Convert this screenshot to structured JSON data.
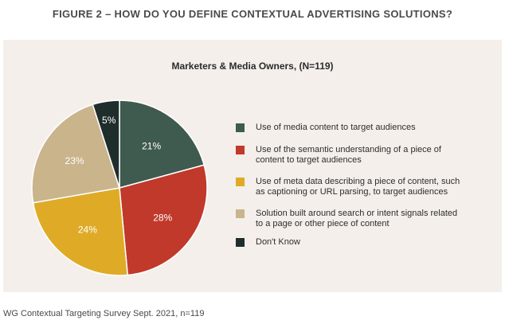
{
  "figure_title": "FIGURE 2 – HOW DO YOU DEFINE CONTEXTUAL ADVERTISING SOLUTIONS?",
  "source": "WG Contextual Targeting Survey Sept. 2021, n=119",
  "chart_data": {
    "type": "pie",
    "title": "Marketers & Media Owners, (N=119)",
    "slices": [
      {
        "label": "Use of media content to target audiences",
        "value": 21,
        "display": "21%",
        "color": "#3f5a4f",
        "text_color": "#ffffff"
      },
      {
        "label": "Use of the semantic understanding of a piece of content to target audiences",
        "value": 28,
        "display": "28%",
        "color": "#c0392b",
        "text_color": "#ffffff"
      },
      {
        "label": "Use of meta data describing a piece of content, such as captioning or URL parsing, to target audiences",
        "value": 24,
        "display": "24%",
        "color": "#dfab27",
        "text_color": "#ffffff"
      },
      {
        "label": "Solution built around search or intent signals related to a page or other piece of content",
        "value": 23,
        "display": "23%",
        "color": "#c9b48c",
        "text_color": "#ffffff"
      },
      {
        "label": "Don't Know",
        "value": 5,
        "display": "5%",
        "color": "#1f2d2b",
        "text_color": "#ffffff"
      }
    ],
    "legend_lines": [
      [
        "Use of media content to target audiences"
      ],
      [
        "Use of the semantic understanding of a piece of",
        "content to target audiences"
      ],
      [
        "Use of meta data describing a piece of content, such",
        "as captioning or URL parsing, to target audiences"
      ],
      [
        "Solution built around search or intent signals related",
        "to a page or other piece of content"
      ],
      [
        "Don't Know"
      ]
    ],
    "legend_position": "right",
    "start_angle": "top, clockwise"
  }
}
